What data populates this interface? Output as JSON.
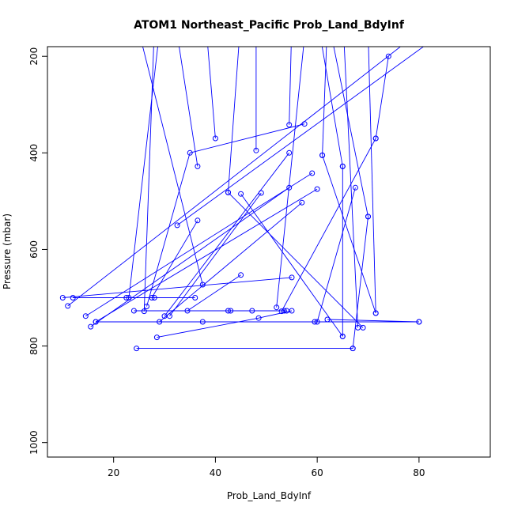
{
  "chart_data": {
    "type": "scatter",
    "title": "ATOM1 Northeast_Pacific Prob_Land_BdyInf",
    "xlabel": "Prob_Land_BdyInf",
    "ylabel": "Pressure (mbar)",
    "xlim": [
      7,
      94
    ],
    "ylim": [
      1030,
      180
    ],
    "y_reversed": true,
    "x_ticks": [
      20,
      40,
      60,
      80
    ],
    "y_ticks": [
      200,
      400,
      600,
      800,
      1000
    ],
    "grid": false,
    "color": "#0000ff",
    "series": [
      {
        "values": [
          [
            32,
            120
          ],
          [
            36.5,
            428
          ]
        ]
      },
      {
        "values": [
          [
            38,
            115
          ],
          [
            40,
            370
          ]
        ]
      },
      {
        "values": [
          [
            45,
            120
          ],
          [
            42.5,
            482
          ]
        ]
      },
      {
        "values": [
          [
            58,
            110
          ],
          [
            52,
            720
          ]
        ]
      },
      {
        "values": [
          [
            60,
            120
          ],
          [
            65,
            428
          ]
        ]
      },
      {
        "values": [
          [
            62,
            115
          ],
          [
            70,
            532
          ]
        ]
      },
      {
        "values": [
          [
            65,
            110
          ],
          [
            68,
            762
          ]
        ]
      },
      {
        "values": [
          [
            70,
            150
          ],
          [
            71.5,
            732
          ]
        ]
      },
      {
        "values": [
          [
            90,
            110
          ],
          [
            32.5,
            550
          ]
        ]
      },
      {
        "values": [
          [
            80,
            150
          ],
          [
            11,
            717
          ]
        ]
      },
      {
        "values": [
          [
            62,
            130
          ],
          [
            61,
            405
          ]
        ]
      },
      {
        "values": [
          [
            55,
            130
          ],
          [
            54.5,
            342
          ]
        ]
      },
      {
        "values": [
          [
            48,
            130
          ],
          [
            48,
            395
          ]
        ]
      },
      {
        "values": [
          [
            28,
            140
          ],
          [
            26,
            728
          ]
        ]
      },
      {
        "values": [
          [
            25,
            150
          ],
          [
            37.5,
            673
          ]
        ]
      },
      {
        "values": [
          [
            29,
            150
          ],
          [
            23,
            700
          ]
        ]
      },
      {
        "values": [
          [
            74,
            200
          ],
          [
            71.5,
            370
          ]
        ]
      },
      {
        "values": [
          [
            71.5,
            370
          ],
          [
            53,
            728
          ]
        ]
      },
      {
        "values": [
          [
            57.5,
            340
          ],
          [
            35,
            400
          ],
          [
            26.5,
            718
          ]
        ]
      },
      {
        "values": [
          [
            10,
            700
          ],
          [
            55,
            658
          ]
        ]
      },
      {
        "values": [
          [
            14.5,
            738
          ],
          [
            59,
            442
          ]
        ]
      },
      {
        "values": [
          [
            16.5,
            750
          ],
          [
            60,
            475
          ]
        ]
      },
      {
        "values": [
          [
            15.5,
            760
          ],
          [
            54.5,
            472
          ]
        ]
      },
      {
        "values": [
          [
            27.5,
            700
          ],
          [
            36.5,
            540
          ]
        ]
      },
      {
        "values": [
          [
            30,
            738
          ],
          [
            54.5,
            400
          ]
        ]
      },
      {
        "values": [
          [
            31,
            738
          ],
          [
            49,
            483
          ]
        ]
      },
      {
        "values": [
          [
            29,
            750
          ],
          [
            57,
            503
          ]
        ]
      },
      {
        "values": [
          [
            34.5,
            727
          ],
          [
            45,
            653
          ]
        ]
      },
      {
        "values": [
          [
            24,
            727
          ],
          [
            42.5,
            727
          ],
          [
            53.5,
            727
          ]
        ]
      },
      {
        "values": [
          [
            37.5,
            750
          ],
          [
            59.5,
            750
          ]
        ]
      },
      {
        "values": [
          [
            16.5,
            750
          ],
          [
            80,
            750
          ]
        ]
      },
      {
        "values": [
          [
            62,
            745
          ],
          [
            80,
            750
          ]
        ]
      },
      {
        "values": [
          [
            43,
            727
          ],
          [
            47.2,
            727
          ],
          [
            54,
            727
          ]
        ]
      },
      {
        "values": [
          [
            28.5,
            782
          ],
          [
            48.5,
            742
          ],
          [
            55,
            727
          ]
        ]
      },
      {
        "values": [
          [
            67.5,
            472
          ],
          [
            60,
            750
          ]
        ]
      },
      {
        "values": [
          [
            65,
            428
          ],
          [
            65,
            780
          ]
        ]
      },
      {
        "values": [
          [
            70,
            532
          ],
          [
            67,
            805
          ]
        ]
      },
      {
        "values": [
          [
            24.5,
            805
          ],
          [
            67,
            805
          ]
        ]
      },
      {
        "values": [
          [
            45,
            485
          ],
          [
            65,
            780
          ]
        ]
      },
      {
        "values": [
          [
            61,
            405
          ],
          [
            71.5,
            732
          ]
        ]
      },
      {
        "values": [
          [
            42.5,
            482
          ],
          [
            69,
            762
          ]
        ]
      },
      {
        "values": [
          [
            22.5,
            700
          ],
          [
            28,
            700
          ]
        ]
      },
      {
        "values": [
          [
            12,
            700
          ],
          [
            36,
            700
          ]
        ]
      }
    ]
  }
}
